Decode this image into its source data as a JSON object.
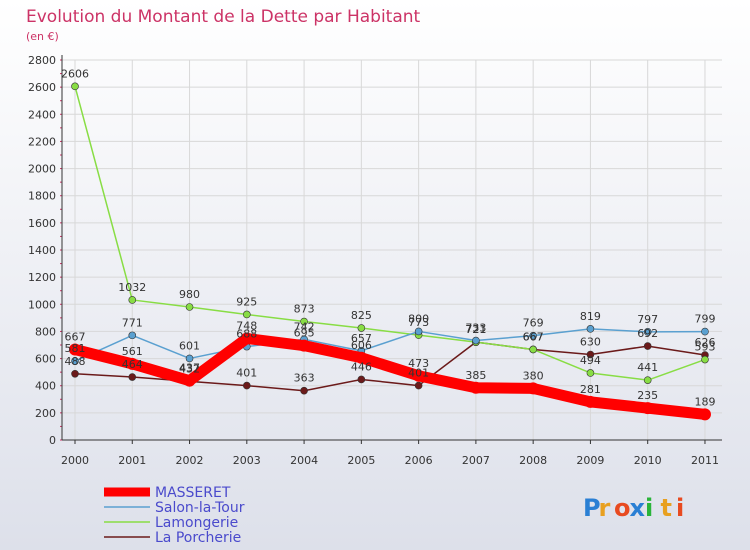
{
  "chart_data": {
    "type": "line",
    "title": "Evolution du Montant de la Dette par Habitant",
    "subtitle": "(en €)",
    "ylim": [
      0,
      2800
    ],
    "yticks": [
      0,
      200,
      400,
      600,
      800,
      1000,
      1200,
      1400,
      1600,
      1800,
      2000,
      2200,
      2400,
      2600,
      2800
    ],
    "categories": [
      "2000",
      "2001",
      "2002",
      "2003",
      "2004",
      "2005",
      "2006",
      "2007",
      "2008",
      "2009",
      "2010",
      "2011"
    ],
    "grid": true,
    "legend_position": "bottom-left",
    "series": [
      {
        "name": "La Porcherie",
        "color": "#6b1a1a",
        "emphasis": false,
        "values": [
          488,
          464,
          432,
          401,
          363,
          446,
          401,
          721,
          667,
          630,
          692,
          626
        ],
        "labels": [
          "488",
          "464",
          "432",
          "401",
          "363",
          "446",
          "401",
          "721",
          "667",
          "630",
          "692",
          "626"
        ]
      },
      {
        "name": "Lamongerie",
        "color": "#88dd44",
        "emphasis": false,
        "values": [
          2606,
          1032,
          980,
          925,
          873,
          825,
          773,
          721,
          667,
          494,
          441,
          593
        ],
        "labels": [
          "2606",
          "1032",
          "980",
          "925",
          "873",
          "825",
          "773",
          "721",
          "667",
          "494",
          "441",
          "593"
        ]
      },
      {
        "name": "Salon-la-Tour",
        "color": "#5aa0d0",
        "emphasis": false,
        "values": [
          581,
          771,
          601,
          688,
          742,
          657,
          800,
          733,
          769,
          819,
          797,
          799
        ],
        "labels": [
          "581",
          "771",
          "601",
          "688",
          "742",
          "657",
          "800",
          "733",
          "769",
          "819",
          "797",
          "799"
        ]
      },
      {
        "name": "MASSERET",
        "color": "#ff0000",
        "emphasis": true,
        "values": [
          667,
          561,
          437,
          748,
          695,
          606,
          473,
          385,
          380,
          281,
          235,
          189
        ],
        "labels": [
          "667",
          "561",
          "437",
          "748",
          "695",
          "606",
          "473",
          "385",
          "380",
          "281",
          "235",
          "189"
        ]
      }
    ],
    "legend_order": [
      "MASSERET",
      "Salon-la-Tour",
      "Lamongerie",
      "La Porcherie"
    ]
  },
  "brand": {
    "letters": [
      "P",
      "r",
      "o",
      "x",
      "i",
      "t",
      "i"
    ],
    "colors": [
      "#2a7fd4",
      "#e8a020",
      "#e84a20",
      "#2a7fd4",
      "#2ab43a",
      "#e8a020",
      "#e84a20"
    ]
  },
  "colors": {
    "title": "#cc3366",
    "axis": "#333333",
    "grid": "#d8d8d8",
    "background_top": "#ffffff",
    "background_bottom": "#dde0ea",
    "legend_text": "#4a4acc"
  }
}
